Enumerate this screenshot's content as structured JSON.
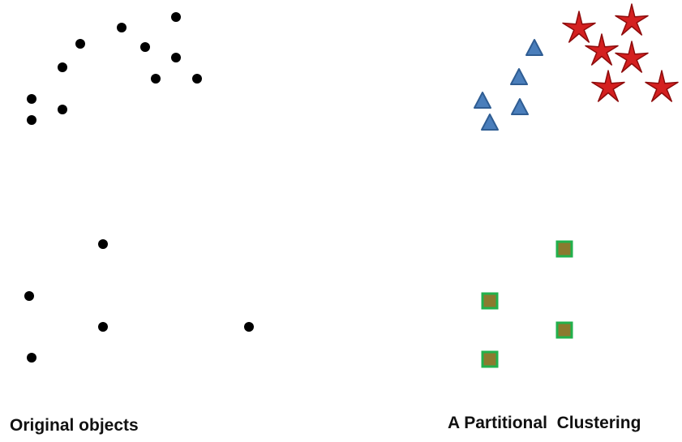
{
  "captions": {
    "left": "Original objects",
    "right": "A Partitional  Clustering"
  },
  "colors": {
    "object_point": "#000000",
    "triangle_fill": "#4a7ebb",
    "triangle_stroke": "#2f5d93",
    "star_fill": "#d42020",
    "star_stroke": "#8e0c0c",
    "square_fill": "#8b7a2f",
    "square_stroke": "#22b14c"
  },
  "panels": {
    "original": {
      "marker": "dot"
    },
    "clustering": {
      "clusters": [
        {
          "marker": "triangle"
        },
        {
          "marker": "star"
        },
        {
          "marker": "square"
        }
      ]
    }
  }
}
